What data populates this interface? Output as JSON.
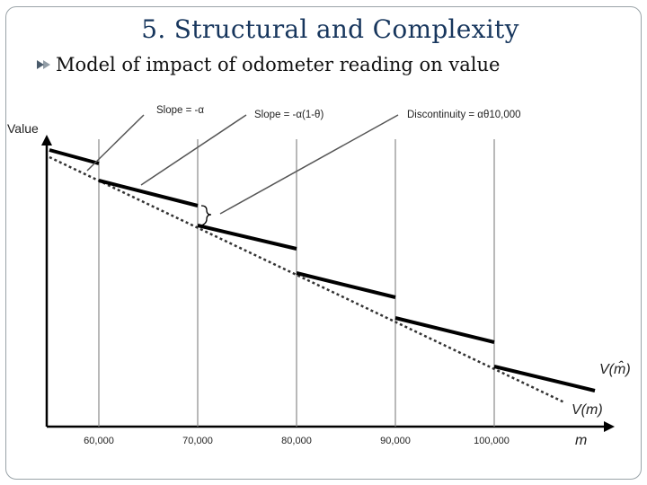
{
  "slide": {
    "title": "5. Structural and Complexity",
    "bullet": "Model of impact of odometer reading on value"
  },
  "figure": {
    "y_axis_label": "Value",
    "x_axis_label": "m",
    "x_ticks": [
      "60,000",
      "70,000",
      "80,000",
      "90,000",
      "100,000"
    ],
    "annotations": {
      "slope_a": "Slope = -α",
      "slope_b": "Slope = -α(1-θ)",
      "discontinuity": "Discontinuity = αθ10,000"
    },
    "curve_labels": {
      "v_hat": "V(m̂)",
      "v": "V(m)"
    }
  },
  "colors": {
    "title": "#17365d",
    "bullet_icon": "#4a5b6b",
    "frame": "#9aa3a8"
  }
}
